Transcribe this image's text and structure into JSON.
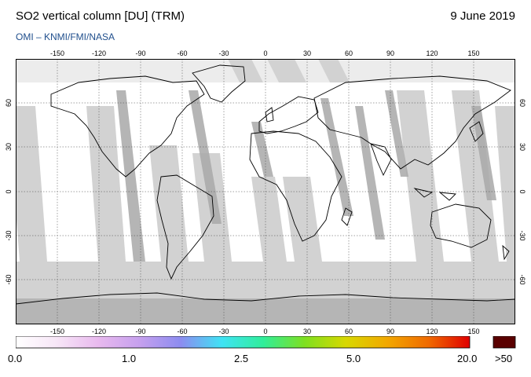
{
  "header": {
    "title": "SO2 vertical column [DU] (TRM)",
    "date": "9 June 2019",
    "credit": "OMI  –  KNMI/FMI/NASA"
  },
  "map": {
    "projection": "equirectangular",
    "lon_range": [
      -180,
      180
    ],
    "lat_range": [
      -90,
      90
    ],
    "lon_ticks": [
      "-150",
      "-120",
      "-90",
      "-60",
      "-30",
      "0",
      "30",
      "60",
      "90",
      "120",
      "150"
    ],
    "lat_ticks": [
      "60",
      "30",
      "0",
      "-30",
      "-60"
    ],
    "colors": {
      "no_data": "#d2d2d2",
      "background": "#ffffff",
      "coast": "#000000",
      "orbit_gap": "#a9a9a9"
    }
  },
  "legend": {
    "labels": [
      "0.0",
      "1.0",
      "2.5",
      "5.0",
      "20.0"
    ],
    "overflow_label": ">50",
    "overflow_color": "#5a0000",
    "gradient": [
      "#ffffff",
      "#f7e6f7",
      "#e8b9ee",
      "#c6a0ee",
      "#8c8cf0",
      "#3fe3f4",
      "#30ee9a",
      "#7ee020",
      "#d8d800",
      "#f2a800",
      "#f06a00",
      "#e00000"
    ]
  }
}
